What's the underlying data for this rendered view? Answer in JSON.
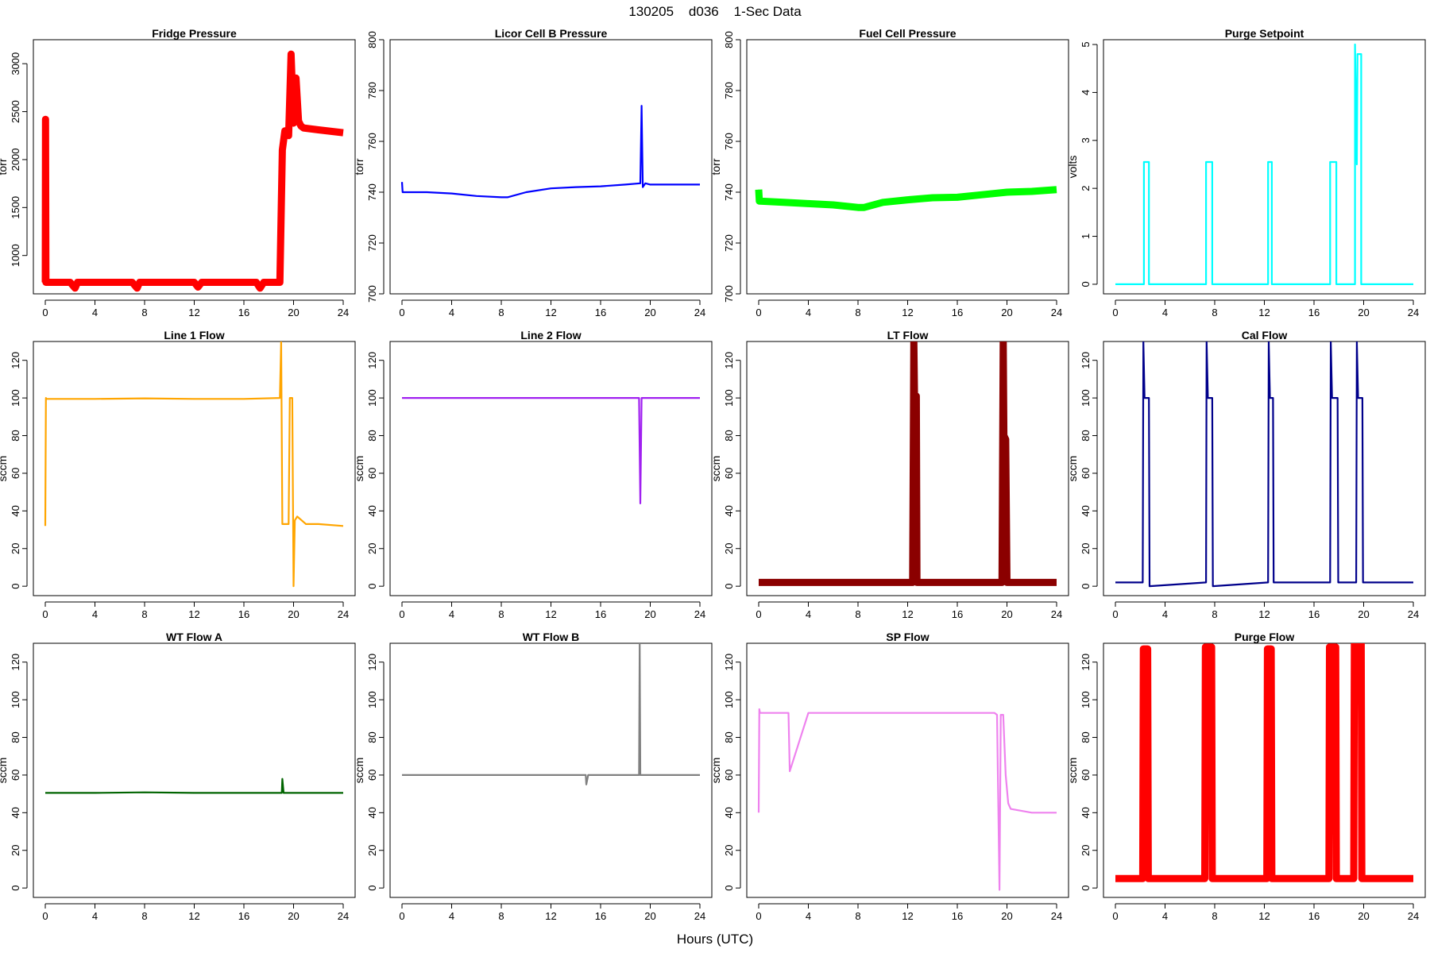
{
  "title": "130205    d036    1-Sec Data",
  "xlabel": "Hours (UTC)",
  "chart_data": [
    {
      "type": "line",
      "title": "Fridge Pressure",
      "ylabel": "torr",
      "color": "#ff0000",
      "xlim": [
        0,
        24
      ],
      "ylim": [
        600,
        3250
      ],
      "xticks": [
        0,
        4,
        8,
        12,
        16,
        20,
        24
      ],
      "yticks": [
        1000,
        1500,
        2000,
        2500,
        3000
      ],
      "band": 1,
      "series": [
        {
          "x": [
            0,
            0.02,
            0.05,
            2,
            2.4,
            2.6,
            4,
            7,
            7.4,
            7.6,
            9,
            12,
            12.3,
            12.6,
            14,
            17,
            17.3,
            17.6,
            18.9,
            19.1,
            19.3,
            19.6,
            19.8,
            20.0,
            20.2,
            20.4,
            20.6,
            20.8,
            22,
            24
          ],
          "y": [
            720,
            2420,
            720,
            720,
            660,
            720,
            720,
            720,
            660,
            720,
            720,
            720,
            670,
            720,
            720,
            720,
            660,
            720,
            720,
            2100,
            2300,
            2250,
            3100,
            2380,
            2850,
            2400,
            2350,
            2330,
            2310,
            2280
          ]
        }
      ]
    },
    {
      "type": "line",
      "title": "Licor Cell B Pressure",
      "ylabel": "torr",
      "color": "#0000ff",
      "xlim": [
        0,
        24
      ],
      "ylim": [
        700,
        800
      ],
      "xticks": [
        0,
        4,
        8,
        12,
        16,
        20,
        24
      ],
      "yticks": [
        700,
        720,
        740,
        760,
        780,
        800
      ],
      "band": 0,
      "series": [
        {
          "x": [
            0,
            0.05,
            0.1,
            2,
            4,
            6,
            8,
            8.5,
            10,
            12,
            14,
            16,
            18,
            19.2,
            19.3,
            19.4,
            19.6,
            20,
            22,
            24
          ],
          "y": [
            744,
            740,
            740,
            740,
            739.5,
            738.5,
            738,
            738,
            740,
            741.5,
            742,
            742.3,
            743,
            743.5,
            774,
            742,
            743.5,
            743,
            743,
            743
          ]
        }
      ]
    },
    {
      "type": "line",
      "title": "Fuel Cell Pressure",
      "ylabel": "torr",
      "color": "#00ff00",
      "xlim": [
        0,
        24
      ],
      "ylim": [
        700,
        800
      ],
      "xticks": [
        0,
        4,
        8,
        12,
        16,
        20,
        24
      ],
      "yticks": [
        700,
        720,
        740,
        760,
        780,
        800
      ],
      "band": 1,
      "series": [
        {
          "x": [
            0,
            0.05,
            0.1,
            2,
            4,
            6,
            8,
            8.5,
            10,
            12,
            14,
            16,
            18,
            20,
            22,
            24
          ],
          "y": [
            741,
            736.5,
            736.5,
            736,
            735.5,
            735,
            734,
            734,
            736,
            737,
            737.8,
            738,
            739,
            740,
            740.3,
            741
          ]
        }
      ]
    },
    {
      "type": "line",
      "title": "Purge Setpoint",
      "ylabel": "volts",
      "color": "#00ffff",
      "xlim": [
        0,
        24
      ],
      "ylim": [
        -0.2,
        5.1
      ],
      "xticks": [
        0,
        4,
        8,
        12,
        16,
        20,
        24
      ],
      "yticks": [
        0,
        1,
        2,
        3,
        4,
        5
      ],
      "band": 0,
      "series": [
        {
          "x": [
            0,
            2.3,
            2.3,
            2.7,
            2.7,
            7.3,
            7.3,
            7.8,
            7.8,
            12.3,
            12.3,
            12.6,
            12.6,
            17.3,
            17.3,
            17.8,
            17.8,
            19.3,
            19.3,
            19.45,
            19.5,
            19.8,
            19.8,
            24
          ],
          "y": [
            0,
            0,
            2.55,
            2.55,
            0,
            0,
            2.55,
            2.55,
            0,
            0,
            2.55,
            2.55,
            0,
            0,
            2.55,
            2.55,
            0,
            0,
            5.0,
            2.5,
            4.8,
            4.8,
            0,
            0
          ]
        }
      ]
    },
    {
      "type": "line",
      "title": "Line 1 Flow",
      "ylabel": "sccm",
      "color": "#ffa500",
      "xlim": [
        0,
        24
      ],
      "ylim": [
        -5,
        130
      ],
      "xticks": [
        0,
        4,
        8,
        12,
        16,
        20,
        24
      ],
      "yticks": [
        0,
        20,
        40,
        60,
        80,
        100,
        120
      ],
      "band": 0,
      "series": [
        {
          "x": [
            0,
            0.05,
            0.1,
            4,
            8,
            12,
            16,
            18.9,
            19.0,
            19.1,
            19.15,
            19.6,
            19.7,
            19.9,
            20.0,
            20.1,
            20.3,
            21,
            22,
            24
          ],
          "y": [
            32,
            100,
            99.5,
            99.5,
            99.8,
            99.5,
            99.5,
            100,
            130,
            33,
            33,
            33,
            100,
            100,
            0,
            35,
            37,
            33,
            33,
            32
          ]
        }
      ]
    },
    {
      "type": "line",
      "title": "Line 2 Flow",
      "ylabel": "sccm",
      "color": "#a020f0",
      "xlim": [
        0,
        24
      ],
      "ylim": [
        -5,
        130
      ],
      "xticks": [
        0,
        4,
        8,
        12,
        16,
        20,
        24
      ],
      "yticks": [
        0,
        20,
        40,
        60,
        80,
        100,
        120
      ],
      "band": 0,
      "series": [
        {
          "x": [
            0,
            4,
            8,
            12,
            16,
            19.1,
            19.2,
            19.3,
            24
          ],
          "y": [
            100,
            100,
            100,
            100,
            100,
            100,
            44,
            100,
            100
          ]
        }
      ]
    },
    {
      "type": "line",
      "title": "LT Flow",
      "ylabel": "sccm",
      "color": "#8b0000",
      "xlim": [
        0,
        24
      ],
      "ylim": [
        -5,
        130
      ],
      "xticks": [
        0,
        4,
        8,
        12,
        16,
        20,
        24
      ],
      "yticks": [
        0,
        20,
        40,
        60,
        80,
        100,
        120
      ],
      "band": 1,
      "series": [
        {
          "x": [
            0,
            12.4,
            12.5,
            12.55,
            12.7,
            12.75,
            12.8,
            19.6,
            19.7,
            19.75,
            19.9,
            20.0,
            20.1,
            24
          ],
          "y": [
            2,
            2,
            130,
            101,
            101,
            2,
            2,
            2,
            130,
            80,
            78,
            2,
            2,
            2
          ]
        }
      ]
    },
    {
      "type": "line",
      "title": "Cal Flow",
      "ylabel": "sccm",
      "color": "#00008b",
      "xlim": [
        0,
        24
      ],
      "ylim": [
        -5,
        130
      ],
      "xticks": [
        0,
        4,
        8,
        12,
        16,
        20,
        24
      ],
      "yticks": [
        0,
        20,
        40,
        60,
        80,
        100,
        120
      ],
      "band": 0,
      "series": [
        {
          "x": [
            0,
            2.2,
            2.25,
            2.35,
            2.7,
            2.75,
            7.3,
            7.35,
            7.45,
            7.8,
            7.85,
            12.3,
            12.35,
            12.45,
            12.7,
            12.75,
            17.3,
            17.35,
            17.45,
            17.9,
            17.95,
            19.4,
            19.45,
            19.55,
            19.9,
            19.95,
            24
          ],
          "y": [
            2,
            2,
            130,
            100,
            100,
            0,
            2,
            130,
            100,
            100,
            0,
            2,
            130,
            100,
            100,
            2,
            2,
            130,
            100,
            100,
            2,
            2,
            130,
            100,
            100,
            2,
            2
          ]
        }
      ]
    },
    {
      "type": "line",
      "title": "WT Flow A",
      "ylabel": "sccm",
      "color": "#006400",
      "xlim": [
        0,
        24
      ],
      "ylim": [
        -5,
        130
      ],
      "xticks": [
        0,
        4,
        8,
        12,
        16,
        20,
        24
      ],
      "yticks": [
        0,
        20,
        40,
        60,
        80,
        100,
        120
      ],
      "band": 0,
      "series": [
        {
          "x": [
            0,
            4,
            8,
            12,
            16,
            19.05,
            19.1,
            19.2,
            24
          ],
          "y": [
            50.5,
            50.5,
            50.8,
            50.5,
            50.5,
            50.5,
            58,
            50.5,
            50.5
          ]
        }
      ]
    },
    {
      "type": "line",
      "title": "WT Flow B",
      "ylabel": "sccm",
      "color": "#808080",
      "xlim": [
        0,
        24
      ],
      "ylim": [
        -5,
        130
      ],
      "xticks": [
        0,
        4,
        8,
        12,
        16,
        20,
        24
      ],
      "yticks": [
        0,
        20,
        40,
        60,
        80,
        100,
        120
      ],
      "band": 0,
      "series": [
        {
          "x": [
            0,
            4,
            8,
            12,
            14.8,
            14.85,
            15,
            19.1,
            19.15,
            19.2,
            24
          ],
          "y": [
            60,
            60,
            60,
            60,
            60,
            55,
            60,
            60,
            130,
            60,
            60
          ]
        }
      ]
    },
    {
      "type": "line",
      "title": "SP Flow",
      "ylabel": "sccm",
      "color": "#ee82ee",
      "xlim": [
        0,
        24
      ],
      "ylim": [
        -5,
        130
      ],
      "xticks": [
        0,
        4,
        8,
        12,
        16,
        20,
        24
      ],
      "yticks": [
        0,
        20,
        40,
        60,
        80,
        100,
        120
      ],
      "band": 0,
      "series": [
        {
          "x": [
            0,
            0.05,
            0.1,
            2,
            2.4,
            2.5,
            4,
            8,
            12,
            16,
            18,
            19.0,
            19.2,
            19.4,
            19.5,
            19.7,
            19.9,
            20.1,
            20.3,
            22,
            24
          ],
          "y": [
            40,
            95,
            93,
            93,
            93,
            62,
            93,
            93,
            93,
            93,
            93,
            93,
            92,
            -1,
            92,
            92,
            60,
            45,
            42,
            40,
            40
          ]
        }
      ]
    },
    {
      "type": "line",
      "title": "Purge Flow",
      "ylabel": "sccm",
      "color": "#ff0000",
      "xlim": [
        0,
        24
      ],
      "ylim": [
        -5,
        130
      ],
      "xticks": [
        0,
        4,
        8,
        12,
        16,
        20,
        24
      ],
      "yticks": [
        0,
        20,
        40,
        60,
        80,
        100,
        120
      ],
      "band": 1,
      "series": [
        {
          "x": [
            0,
            2.2,
            2.25,
            2.6,
            2.65,
            7.2,
            7.25,
            7.75,
            7.8,
            12.2,
            12.25,
            12.55,
            12.6,
            17.2,
            17.25,
            17.75,
            17.8,
            19.2,
            19.25,
            19.8,
            19.85,
            24
          ],
          "y": [
            5,
            5,
            127,
            127,
            5,
            5,
            128,
            128,
            5,
            5,
            127,
            127,
            5,
            5,
            128,
            128,
            5,
            5,
            130,
            130,
            5,
            5
          ]
        }
      ]
    }
  ]
}
